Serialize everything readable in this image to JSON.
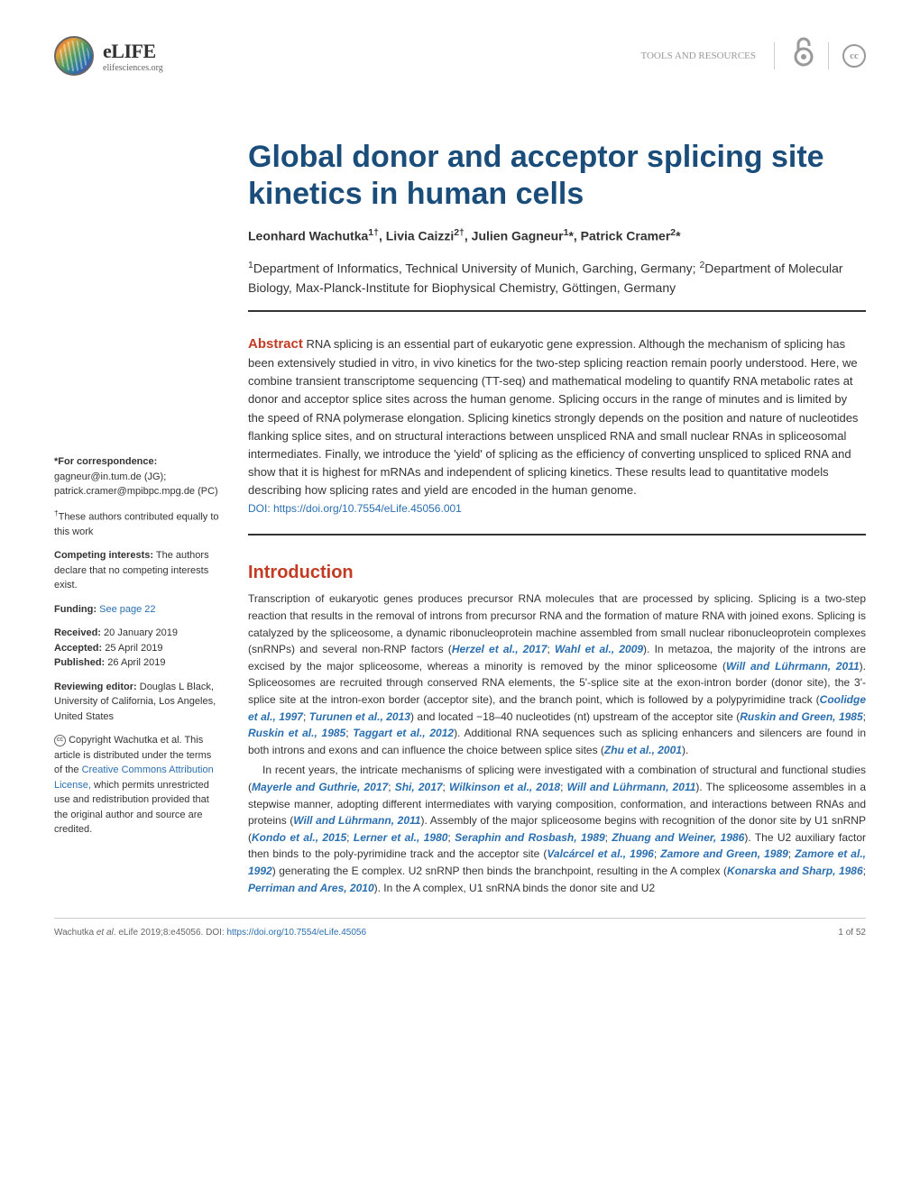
{
  "header": {
    "logo_name": "eLIFE",
    "logo_url": "elifesciences.org",
    "category": "TOOLS AND RESOURCES",
    "cc_text": "cc"
  },
  "article": {
    "title": "Global donor and acceptor splicing site kinetics in human cells",
    "authors_html": "Leonhard Wachutka<sup>1†</sup>, Livia Caizzi<sup>2†</sup>, Julien Gagneur<sup>1</sup>*, Patrick Cramer<sup>2</sup>*",
    "affiliations_html": "<sup>1</sup>Department of Informatics, Technical University of Munich, Garching, Germany; <sup>2</sup>Department of Molecular Biology, Max-Planck-Institute for Biophysical Chemistry, Göttingen, Germany",
    "abstract_label": "Abstract",
    "abstract_text": "RNA splicing is an essential part of eukaryotic gene expression. Although the mechanism of splicing has been extensively studied in vitro, in vivo kinetics for the two-step splicing reaction remain poorly understood. Here, we combine transient transcriptome sequencing (TT-seq) and mathematical modeling to quantify RNA metabolic rates at donor and acceptor splice sites across the human genome. Splicing occurs in the range of minutes and is limited by the speed of RNA polymerase elongation. Splicing kinetics strongly depends on the position and nature of nucleotides flanking splice sites, and on structural interactions between unspliced RNA and small nuclear RNAs in spliceosomal intermediates. Finally, we introduce the 'yield' of splicing as the efficiency of converting unspliced to spliced RNA and show that it is highest for mRNAs and independent of splicing kinetics. These results lead to quantitative models describing how splicing rates and yield are encoded in the human genome.",
    "doi_label": "DOI: https://doi.org/10.7554/eLife.45056.001",
    "intro_heading": "Introduction"
  },
  "sidebar": {
    "correspondence_label": "*For correspondence:",
    "correspondence_text": "gagneur@in.tum.de (JG); patrick.cramer@mpibpc.mpg.de (PC)",
    "contributed": "These authors contributed equally to this work",
    "competing_label": "Competing interests:",
    "competing_text": "The authors declare that no competing interests exist.",
    "funding_label": "Funding:",
    "funding_link": "See page 22",
    "received_label": "Received:",
    "received_date": "20 January 2019",
    "accepted_label": "Accepted:",
    "accepted_date": "25 April 2019",
    "published_label": "Published:",
    "published_date": "26 April 2019",
    "reviewing_label": "Reviewing editor:",
    "reviewing_text": "Douglas L Black, University of California, Los Angeles, United States",
    "copyright_text": "Copyright Wachutka et al. This article is distributed under the terms of the ",
    "copyright_link": "Creative Commons Attribution License,",
    "copyright_rest": " which permits unrestricted use and redistribution provided that the original author and source are credited."
  },
  "footer": {
    "citation": "Wachutka et al. eLife 2019;8:e45056. DOI: https://doi.org/10.7554/eLife.45056",
    "page": "1 of 52"
  }
}
